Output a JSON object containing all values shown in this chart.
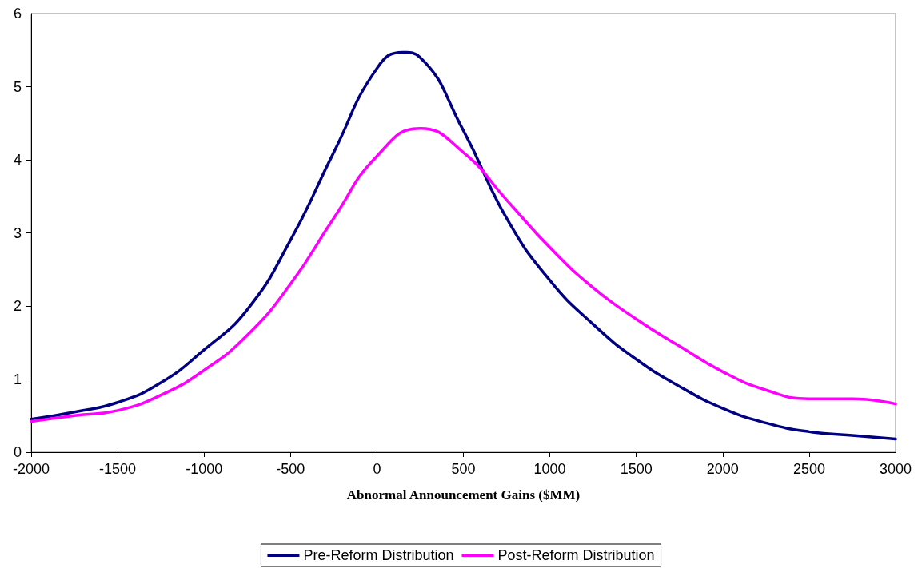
{
  "chart_data": {
    "type": "line",
    "xlabel": "Abnormal Announcement Gains ($MM)",
    "xlim": [
      -2000,
      3000
    ],
    "xticks": [
      -2000,
      -1500,
      -1000,
      -500,
      0,
      500,
      1000,
      1500,
      2000,
      2500,
      3000
    ],
    "ylim": [
      0,
      6
    ],
    "yticks": [
      0,
      1,
      2,
      3,
      4,
      5,
      6
    ],
    "grid": false,
    "legend": "bottom",
    "marker": "none",
    "line_style": "solid",
    "series": [
      {
        "name": "Pre-Reform Distribution",
        "color": "#000080",
        "x": [
          -2000,
          -1750,
          -1500,
          -1250,
          -1000,
          -750,
          -500,
          -250,
          0,
          150,
          250,
          500,
          750,
          1000,
          1250,
          1500,
          1750,
          2000,
          2250,
          2500,
          2750,
          3000
        ],
        "values": [
          0.45,
          0.55,
          0.68,
          0.95,
          1.4,
          1.95,
          2.9,
          4.1,
          5.25,
          5.47,
          5.4,
          4.4,
          3.2,
          2.35,
          1.75,
          1.27,
          0.9,
          0.6,
          0.4,
          0.28,
          0.23,
          0.18
        ]
      },
      {
        "name": "Post-Reform Distribution",
        "color": "#ff00ff",
        "x": [
          -2000,
          -1750,
          -1500,
          -1250,
          -1000,
          -750,
          -500,
          -250,
          0,
          250,
          500,
          750,
          1000,
          1250,
          1500,
          1750,
          2000,
          2250,
          2500,
          2750,
          3000
        ],
        "values": [
          0.42,
          0.5,
          0.57,
          0.78,
          1.12,
          1.6,
          2.3,
          3.2,
          4.05,
          4.43,
          4.1,
          3.45,
          2.8,
          2.25,
          1.82,
          1.45,
          1.1,
          0.85,
          0.73,
          0.73,
          0.66
        ]
      }
    ]
  }
}
